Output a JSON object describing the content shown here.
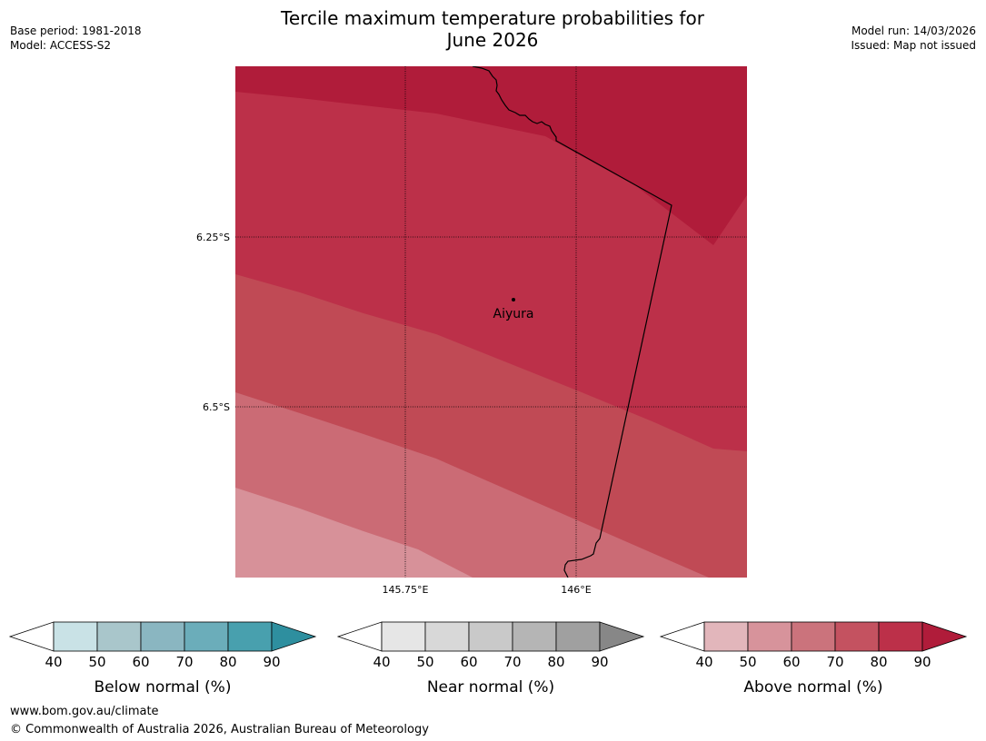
{
  "header": {
    "title_line1": "Tercile maximum temperature probabilities for",
    "title_line2": "June 2026",
    "base_period": "Base period: 1981-2018",
    "model": "Model: ACCESS-S2",
    "model_run": "Model run: 14/03/2026",
    "issued": "Issued: Map not issued"
  },
  "map": {
    "lat_labels": [
      "6.25°S",
      "6.5°S"
    ],
    "lon_labels": [
      "145.75°E",
      "146°E"
    ],
    "city": {
      "name": "Aiyura"
    },
    "band_colors": [
      "#b01c3a",
      "#bc3049",
      "#c04a55",
      "#cb6b75",
      "#d79199"
    ]
  },
  "colorbars": [
    {
      "title": "Below normal (%)",
      "ticks": [
        "40",
        "50",
        "60",
        "70",
        "80",
        "90"
      ],
      "under_color": "#ffffff",
      "colors": [
        "#c9e2e6",
        "#a9c6cb",
        "#8ab6c1",
        "#6badba",
        "#48a0ae"
      ],
      "over_color": "#2e8f9f"
    },
    {
      "title": "Near normal (%)",
      "ticks": [
        "40",
        "50",
        "60",
        "70",
        "80",
        "90"
      ],
      "under_color": "#ffffff",
      "colors": [
        "#e6e6e6",
        "#d8d8d8",
        "#c9c9c9",
        "#b5b5b5",
        "#a0a0a0"
      ],
      "over_color": "#878787"
    },
    {
      "title": "Above normal (%)",
      "ticks": [
        "40",
        "50",
        "60",
        "70",
        "80",
        "90"
      ],
      "under_color": "#ffffff",
      "colors": [
        "#e2b6bb",
        "#d7939b",
        "#cb737c",
        "#c45260",
        "#bc3049"
      ],
      "over_color": "#b01c3a"
    }
  ],
  "footer": {
    "url": "www.bom.gov.au/climate",
    "copyright": "© Commonwealth of Australia 2026, Australian Bureau of Meteorology"
  }
}
